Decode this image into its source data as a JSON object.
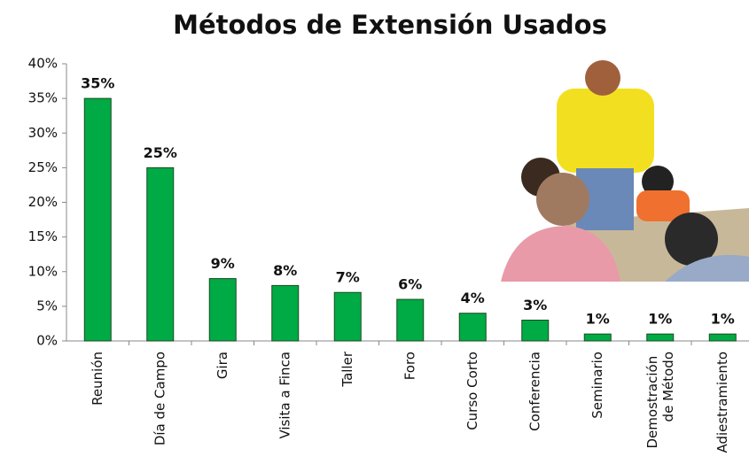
{
  "chart_data": {
    "type": "bar",
    "title": "Métodos de Extensión Usados",
    "categories": [
      "Reunión",
      "Día de Campo",
      "Gira",
      "Visita a Finca",
      "Taller",
      "Foro",
      "Curso Corto",
      "Conferencia",
      "Seminario",
      "Demostración de Método",
      "Adiestramiento"
    ],
    "values": [
      35,
      25,
      9,
      8,
      7,
      6,
      4,
      3,
      1,
      1,
      1
    ],
    "value_labels": [
      "35%",
      "25%",
      "9%",
      "8%",
      "7%",
      "6%",
      "4%",
      "3%",
      "1%",
      "1%",
      "1%"
    ],
    "color": "#00aa44",
    "ylim": [
      0,
      40
    ],
    "yticks": [
      {
        "value": 0,
        "label": "0%"
      },
      {
        "value": 5,
        "label": "5%"
      },
      {
        "value": 10,
        "label": "10%"
      },
      {
        "value": 15,
        "label": "15%"
      },
      {
        "value": 20,
        "label": "20%"
      },
      {
        "value": 25,
        "label": "25%"
      },
      {
        "value": 30,
        "label": "30%"
      },
      {
        "value": 35,
        "label": "35%"
      },
      {
        "value": 40,
        "label": "40%"
      }
    ],
    "grid": false
  }
}
